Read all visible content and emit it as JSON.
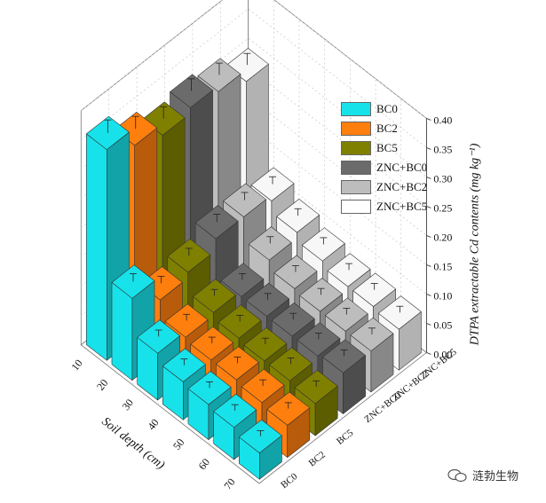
{
  "chart_data": {
    "type": "bar",
    "subtype": "3d-bar",
    "title": "",
    "xlabel": "Soil depth (cm)",
    "ylabel": "DTPA extractable Cd contents (mg kg⁻¹)",
    "depths": [
      "10",
      "20",
      "30",
      "40",
      "50",
      "60",
      "70"
    ],
    "treatments": [
      "BC0",
      "BC2",
      "BC5",
      "ZNC+BC0",
      "ZNC+BC2",
      "ZNC+BC5"
    ],
    "zlim": [
      0,
      0.4
    ],
    "zticks": [
      "0.00",
      "0.05",
      "0.10",
      "0.15",
      "0.20",
      "0.25",
      "0.30",
      "0.35",
      "0.40"
    ],
    "series": [
      {
        "name": "BC0",
        "color": "#17E2EA",
        "values": [
          0.36,
          0.14,
          0.08,
          0.065,
          0.06,
          0.055,
          0.045
        ]
      },
      {
        "name": "BC2",
        "color": "#FF7F0E",
        "values": [
          0.33,
          0.1,
          0.07,
          0.065,
          0.065,
          0.06,
          0.055
        ]
      },
      {
        "name": "BC5",
        "color": "#808000",
        "values": [
          0.31,
          0.11,
          0.075,
          0.065,
          0.06,
          0.06,
          0.055
        ]
      },
      {
        "name": "ZNC+BC0",
        "color": "#6B6B6B",
        "values": [
          0.32,
          0.13,
          0.065,
          0.065,
          0.065,
          0.065,
          0.07
        ]
      },
      {
        "name": "ZNC+BC2",
        "color": "#BDBDBD",
        "values": [
          0.31,
          0.13,
          0.09,
          0.075,
          0.07,
          0.07,
          0.07
        ]
      },
      {
        "name": "ZNC+BC5",
        "color": "#F7F7F7",
        "values": [
          0.29,
          0.12,
          0.1,
          0.085,
          0.075,
          0.075,
          0.07
        ]
      }
    ],
    "legend_position": "top-right",
    "grid": true
  },
  "legend": [
    {
      "label": "BC0",
      "color": "#17E2EA"
    },
    {
      "label": "BC2",
      "color": "#FF7F0E"
    },
    {
      "label": "BC5",
      "color": "#808000"
    },
    {
      "label": "ZNC+BC0",
      "color": "#6B6B6B"
    },
    {
      "label": "ZNC+BC2",
      "color": "#BDBDBD"
    },
    {
      "label": "ZNC+BC5",
      "color": "#FFFFFF"
    }
  ],
  "watermark": {
    "text": "涟勃生物"
  }
}
